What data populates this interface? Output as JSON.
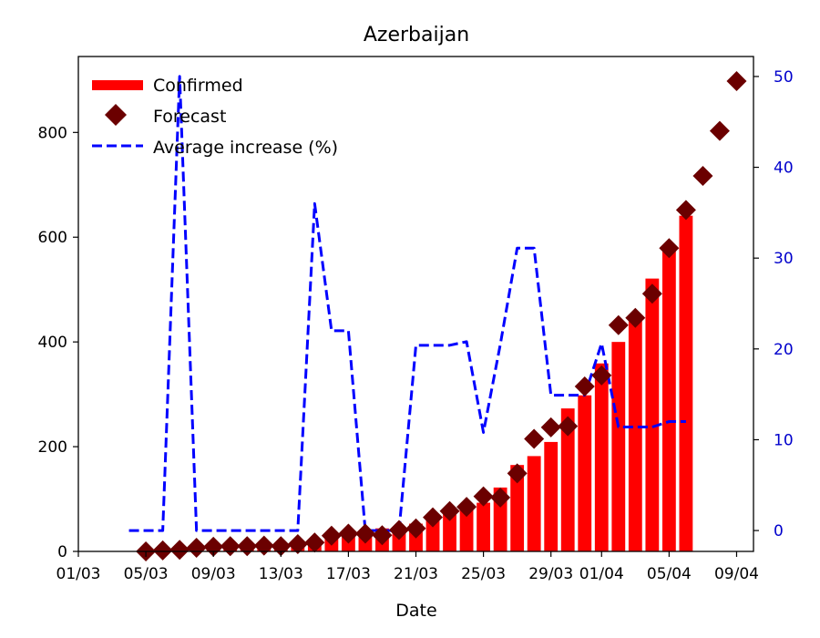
{
  "chart_data": {
    "type": "bar",
    "title": "Azerbaijan",
    "xlabel": "Date",
    "ylabel": "",
    "ylabel_right": "",
    "x_tick_labels": [
      "01/03",
      "05/03",
      "09/03",
      "13/03",
      "17/03",
      "21/03",
      "25/03",
      "29/03",
      "01/04",
      "05/04",
      "09/04"
    ],
    "x_tick_dates": [
      "2020-03-01",
      "2020-03-05",
      "2020-03-09",
      "2020-03-13",
      "2020-03-17",
      "2020-03-21",
      "2020-03-25",
      "2020-03-29",
      "2020-04-01",
      "2020-04-05",
      "2020-04-09"
    ],
    "xlim": [
      "2020-03-01",
      "2020-04-10"
    ],
    "ylim": [
      0,
      945
    ],
    "yticks": [
      0,
      200,
      400,
      600,
      800
    ],
    "ylim_right": [
      -2.3,
      52.2
    ],
    "yticks_right": [
      0,
      10,
      20,
      30,
      40,
      50
    ],
    "right_axis_color": "#0000cc",
    "legend_position": "upper-left",
    "series": [
      {
        "name": "Confirmed",
        "kind": "bar",
        "color": "#ff0000",
        "x": [
          "2020-03-04",
          "2020-03-05",
          "2020-03-06",
          "2020-03-07",
          "2020-03-08",
          "2020-03-09",
          "2020-03-10",
          "2020-03-11",
          "2020-03-12",
          "2020-03-13",
          "2020-03-14",
          "2020-03-15",
          "2020-03-16",
          "2020-03-17",
          "2020-03-18",
          "2020-03-19",
          "2020-03-20",
          "2020-03-21",
          "2020-03-22",
          "2020-03-23",
          "2020-03-24",
          "2020-03-25",
          "2020-03-26",
          "2020-03-27",
          "2020-03-28",
          "2020-03-29",
          "2020-03-30",
          "2020-03-31",
          "2020-04-01",
          "2020-04-02",
          "2020-04-03",
          "2020-04-04",
          "2020-04-05",
          "2020-04-06"
        ],
        "values": [
          0,
          3,
          6,
          9,
          9,
          11,
          11,
          11,
          11,
          15,
          15,
          23,
          28,
          28,
          34,
          44,
          44,
          53,
          65,
          72,
          87,
          93,
          122,
          165,
          182,
          209,
          273,
          298,
          359,
          400,
          443,
          521,
          584,
          641
        ]
      },
      {
        "name": "Forecast",
        "kind": "scatter",
        "marker": "diamond",
        "color": "#6b0000",
        "x": [
          "2020-03-05",
          "2020-03-06",
          "2020-03-07",
          "2020-03-08",
          "2020-03-09",
          "2020-03-10",
          "2020-03-11",
          "2020-03-12",
          "2020-03-13",
          "2020-03-14",
          "2020-03-15",
          "2020-03-16",
          "2020-03-17",
          "2020-03-18",
          "2020-03-19",
          "2020-03-20",
          "2020-03-21",
          "2020-03-22",
          "2020-03-23",
          "2020-03-24",
          "2020-03-25",
          "2020-03-26",
          "2020-03-27",
          "2020-03-28",
          "2020-03-29",
          "2020-03-30",
          "2020-03-31",
          "2020-04-01",
          "2020-04-02",
          "2020-04-03",
          "2020-04-04",
          "2020-04-05",
          "2020-04-06",
          "2020-04-07",
          "2020-04-08",
          "2020-04-09"
        ],
        "values": [
          0,
          2,
          3,
          7,
          9,
          10,
          10,
          11,
          10,
          14,
          17,
          30,
          34,
          34,
          31,
          41,
          44,
          65,
          77,
          85,
          105,
          103,
          149,
          215,
          237,
          239,
          315,
          336,
          432,
          446,
          492,
          579,
          652,
          717,
          803,
          898
        ]
      },
      {
        "name": "Average increase (%)",
        "kind": "line",
        "axis": "right",
        "linestyle": "dashed",
        "color": "#0000ff",
        "x": [
          "2020-03-04",
          "2020-03-05",
          "2020-03-06",
          "2020-03-07",
          "2020-03-08",
          "2020-03-09",
          "2020-03-10",
          "2020-03-11",
          "2020-03-12",
          "2020-03-13",
          "2020-03-14",
          "2020-03-15",
          "2020-03-16",
          "2020-03-17",
          "2020-03-18",
          "2020-03-19",
          "2020-03-20",
          "2020-03-21",
          "2020-03-22",
          "2020-03-23",
          "2020-03-24",
          "2020-03-25",
          "2020-03-26",
          "2020-03-27",
          "2020-03-28",
          "2020-03-29",
          "2020-03-30",
          "2020-03-31",
          "2020-04-01",
          "2020-04-02",
          "2020-04-03",
          "2020-04-04",
          "2020-04-05",
          "2020-04-06"
        ],
        "values": [
          0,
          0,
          0,
          50,
          0,
          0,
          0,
          0,
          0,
          0,
          0,
          36,
          22,
          22,
          0,
          0,
          0,
          20.4,
          20.4,
          20.4,
          20.8,
          10.8,
          20.5,
          31.1,
          31.1,
          14.9,
          14.9,
          14.9,
          20.6,
          11.4,
          11.4,
          11.4,
          12,
          12
        ]
      }
    ]
  }
}
